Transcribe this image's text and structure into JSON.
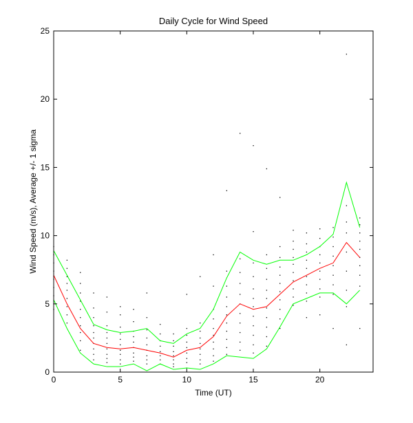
{
  "chart_data": {
    "type": "line",
    "title": "Daily Cycle for Wind Speed",
    "xlabel": "Time (UT)",
    "ylabel": "Wind Speed (m/s), Average +/- 1 sigma",
    "xlim": [
      0,
      24
    ],
    "ylim": [
      0,
      25
    ],
    "xticks": [
      0,
      5,
      10,
      15,
      20
    ],
    "yticks": [
      0,
      5,
      10,
      15,
      20,
      25
    ],
    "grid": false,
    "x": [
      0,
      1,
      2,
      3,
      4,
      5,
      6,
      7,
      8,
      9,
      10,
      11,
      12,
      13,
      14,
      15,
      16,
      17,
      18,
      19,
      20,
      21,
      22,
      23
    ],
    "series": [
      {
        "color": "#ff0000",
        "role": "average",
        "values": [
          7.1,
          5.0,
          3.2,
          2.1,
          1.8,
          1.7,
          1.8,
          1.6,
          1.4,
          1.1,
          1.6,
          1.8,
          2.6,
          4.1,
          5.0,
          4.6,
          4.8,
          5.7,
          6.6,
          7.1,
          7.6,
          8.0,
          9.5,
          8.4
        ]
      },
      {
        "color": "#00ff00",
        "role": "average+1sigma",
        "values": [
          8.9,
          7.1,
          5.3,
          3.5,
          3.1,
          2.9,
          3.0,
          3.2,
          2.3,
          2.1,
          2.8,
          3.2,
          4.6,
          6.9,
          8.8,
          8.2,
          7.9,
          8.2,
          8.2,
          8.6,
          9.2,
          10.1,
          13.9,
          10.6
        ]
      },
      {
        "color": "#00ff00",
        "role": "average-1sigma",
        "values": [
          5.3,
          3.2,
          1.4,
          0.6,
          0.4,
          0.4,
          0.6,
          0.1,
          0.6,
          0.2,
          0.3,
          0.2,
          0.6,
          1.2,
          1.1,
          1.0,
          1.7,
          3.3,
          5.0,
          5.4,
          5.8,
          5.8,
          5.0,
          6.0
        ]
      }
    ],
    "scatter_color": "#000000",
    "scatter": [
      [
        0,
        4.6
      ],
      [
        0,
        5.0
      ],
      [
        0,
        5.6
      ],
      [
        0,
        6.2
      ],
      [
        0,
        6.8
      ],
      [
        0,
        7.4
      ],
      [
        0,
        8.0
      ],
      [
        0,
        8.6
      ],
      [
        0,
        9.2
      ],
      [
        1,
        3.6
      ],
      [
        1,
        4.2
      ],
      [
        1,
        4.8
      ],
      [
        1,
        5.4
      ],
      [
        1,
        6.0
      ],
      [
        1,
        6.5
      ],
      [
        1,
        7.0
      ],
      [
        1,
        7.6
      ],
      [
        1,
        8.2
      ],
      [
        2,
        1.6
      ],
      [
        2,
        2.3
      ],
      [
        2,
        2.9
      ],
      [
        2,
        3.4
      ],
      [
        2,
        4.0
      ],
      [
        2,
        4.6
      ],
      [
        2,
        5.2
      ],
      [
        2,
        5.8
      ],
      [
        2,
        6.5
      ],
      [
        2,
        7.3
      ],
      [
        3,
        0.9
      ],
      [
        3,
        1.3
      ],
      [
        3,
        1.7
      ],
      [
        3,
        2.1
      ],
      [
        3,
        2.5
      ],
      [
        3,
        2.9
      ],
      [
        3,
        3.4
      ],
      [
        3,
        4.0
      ],
      [
        3,
        4.7
      ],
      [
        3,
        5.8
      ],
      [
        4,
        0.7
      ],
      [
        4,
        1.0
      ],
      [
        4,
        1.3
      ],
      [
        4,
        1.7
      ],
      [
        4,
        2.1
      ],
      [
        4,
        2.5
      ],
      [
        4,
        2.9
      ],
      [
        4,
        3.4
      ],
      [
        4,
        4.4
      ],
      [
        4,
        5.5
      ],
      [
        5,
        0.6
      ],
      [
        5,
        0.9
      ],
      [
        5,
        1.3
      ],
      [
        5,
        1.6
      ],
      [
        5,
        2.0
      ],
      [
        5,
        2.4
      ],
      [
        5,
        2.8
      ],
      [
        5,
        3.3
      ],
      [
        5,
        4.2
      ],
      [
        5,
        4.8
      ],
      [
        6,
        0.8
      ],
      [
        6,
        1.1
      ],
      [
        6,
        1.4
      ],
      [
        6,
        1.8
      ],
      [
        6,
        2.2
      ],
      [
        6,
        2.6
      ],
      [
        6,
        3.0
      ],
      [
        6,
        3.7
      ],
      [
        6,
        4.6
      ],
      [
        7,
        0.6
      ],
      [
        7,
        0.9
      ],
      [
        7,
        1.2
      ],
      [
        7,
        1.6
      ],
      [
        7,
        2.0
      ],
      [
        7,
        2.5
      ],
      [
        7,
        3.1
      ],
      [
        7,
        4.0
      ],
      [
        7,
        5.8
      ],
      [
        8,
        0.6
      ],
      [
        8,
        0.9
      ],
      [
        8,
        1.2
      ],
      [
        8,
        1.5
      ],
      [
        8,
        1.9
      ],
      [
        8,
        2.3
      ],
      [
        8,
        2.8
      ],
      [
        8,
        3.5
      ],
      [
        9,
        0.4
      ],
      [
        9,
        0.6
      ],
      [
        9,
        0.9
      ],
      [
        9,
        1.2
      ],
      [
        9,
        1.5
      ],
      [
        9,
        1.9
      ],
      [
        9,
        2.3
      ],
      [
        9,
        2.8
      ],
      [
        10,
        0.3
      ],
      [
        10,
        0.7
      ],
      [
        10,
        1.0
      ],
      [
        10,
        1.4
      ],
      [
        10,
        1.8
      ],
      [
        10,
        2.2
      ],
      [
        10,
        2.7
      ],
      [
        10,
        3.2
      ],
      [
        10,
        5.7
      ],
      [
        11,
        0.6
      ],
      [
        11,
        0.9
      ],
      [
        11,
        1.3
      ],
      [
        11,
        1.7
      ],
      [
        11,
        2.1
      ],
      [
        11,
        2.5
      ],
      [
        11,
        3.0
      ],
      [
        11,
        3.6
      ],
      [
        11,
        7.0
      ],
      [
        12,
        0.8
      ],
      [
        12,
        1.2
      ],
      [
        12,
        1.7
      ],
      [
        12,
        2.2
      ],
      [
        12,
        2.7
      ],
      [
        12,
        3.2
      ],
      [
        12,
        3.9
      ],
      [
        12,
        4.6
      ],
      [
        12,
        6.3
      ],
      [
        12,
        8.6
      ],
      [
        13,
        1.3
      ],
      [
        13,
        1.8
      ],
      [
        13,
        2.4
      ],
      [
        13,
        3.0
      ],
      [
        13,
        3.6
      ],
      [
        13,
        4.2
      ],
      [
        13,
        4.8
      ],
      [
        13,
        5.5
      ],
      [
        13,
        6.3
      ],
      [
        13,
        7.4
      ],
      [
        13,
        13.3
      ],
      [
        14,
        1.6
      ],
      [
        14,
        2.2
      ],
      [
        14,
        2.9
      ],
      [
        14,
        3.6
      ],
      [
        14,
        4.3
      ],
      [
        14,
        5.0
      ],
      [
        14,
        5.7
      ],
      [
        14,
        6.5
      ],
      [
        14,
        7.3
      ],
      [
        14,
        8.3
      ],
      [
        14,
        17.5
      ],
      [
        15,
        1.4
      ],
      [
        15,
        2.0
      ],
      [
        15,
        2.7
      ],
      [
        15,
        3.4
      ],
      [
        15,
        4.1
      ],
      [
        15,
        4.8
      ],
      [
        15,
        5.4
      ],
      [
        15,
        6.1
      ],
      [
        15,
        7.0
      ],
      [
        15,
        8.0
      ],
      [
        15,
        10.3
      ],
      [
        15,
        16.6
      ],
      [
        16,
        1.9
      ],
      [
        16,
        2.6
      ],
      [
        16,
        3.3
      ],
      [
        16,
        4.0
      ],
      [
        16,
        4.7
      ],
      [
        16,
        5.4
      ],
      [
        16,
        6.0
      ],
      [
        16,
        6.8
      ],
      [
        16,
        7.6
      ],
      [
        16,
        8.6
      ],
      [
        16,
        14.9
      ],
      [
        17,
        3.2
      ],
      [
        17,
        3.9
      ],
      [
        17,
        4.6
      ],
      [
        17,
        5.3
      ],
      [
        17,
        5.9
      ],
      [
        17,
        6.5
      ],
      [
        17,
        7.1
      ],
      [
        17,
        7.7
      ],
      [
        17,
        8.4
      ],
      [
        17,
        9.2
      ],
      [
        17,
        12.8
      ],
      [
        18,
        4.9
      ],
      [
        18,
        5.5
      ],
      [
        18,
        6.1
      ],
      [
        18,
        6.7
      ],
      [
        18,
        7.3
      ],
      [
        18,
        7.9
      ],
      [
        18,
        8.4
      ],
      [
        18,
        9.0
      ],
      [
        18,
        9.6
      ],
      [
        18,
        10.4
      ],
      [
        19,
        4.0
      ],
      [
        19,
        5.2
      ],
      [
        19,
        5.8
      ],
      [
        19,
        6.4
      ],
      [
        19,
        7.0
      ],
      [
        19,
        7.6
      ],
      [
        19,
        8.2
      ],
      [
        19,
        8.8
      ],
      [
        19,
        9.4
      ],
      [
        19,
        10.2
      ],
      [
        20,
        4.2
      ],
      [
        20,
        5.5
      ],
      [
        20,
        6.1
      ],
      [
        20,
        6.8
      ],
      [
        20,
        7.4
      ],
      [
        20,
        8.0
      ],
      [
        20,
        8.6
      ],
      [
        20,
        9.2
      ],
      [
        20,
        9.8
      ],
      [
        20,
        10.5
      ],
      [
        21,
        3.2
      ],
      [
        21,
        5.7
      ],
      [
        21,
        6.4
      ],
      [
        21,
        7.1
      ],
      [
        21,
        7.8
      ],
      [
        21,
        8.5
      ],
      [
        21,
        9.2
      ],
      [
        21,
        9.9
      ],
      [
        21,
        10.6
      ],
      [
        22,
        2.0
      ],
      [
        22,
        4.8
      ],
      [
        22,
        6.0
      ],
      [
        22,
        7.4
      ],
      [
        22,
        8.8
      ],
      [
        22,
        10.2
      ],
      [
        22,
        11.0
      ],
      [
        22,
        12.2
      ],
      [
        22,
        23.3
      ],
      [
        23,
        3.2
      ],
      [
        23,
        6.3
      ],
      [
        23,
        7.1
      ],
      [
        23,
        7.8
      ],
      [
        23,
        8.4
      ],
      [
        23,
        9.0
      ],
      [
        23,
        9.6
      ],
      [
        23,
        10.2
      ],
      [
        23,
        10.8
      ],
      [
        23,
        11.3
      ]
    ]
  }
}
